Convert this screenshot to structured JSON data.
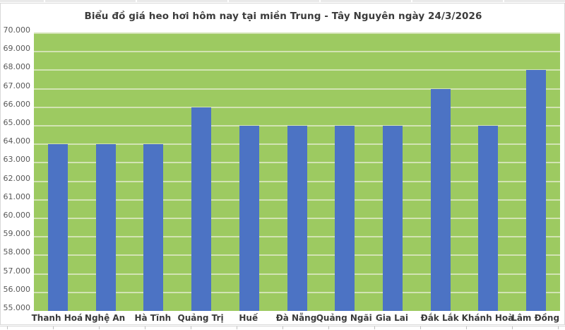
{
  "chart_data": {
    "type": "bar",
    "title": "Biểu đồ giá heo hơi hôm nay tại miền Trung - Tây Nguyên ngày 24/3/2026",
    "categories": [
      "Thanh Hoá",
      "Nghệ An",
      "Hà Tĩnh",
      "Quảng Trị",
      "Huế",
      "Đà Nẵng",
      "Quảng Ngãi",
      "Gia Lai",
      "Đắk Lắk",
      "Khánh Hoà",
      "Lâm Đồng"
    ],
    "values": [
      64000,
      64000,
      64000,
      66000,
      65000,
      65000,
      65000,
      65000,
      67000,
      65000,
      68000
    ],
    "xlabel": "",
    "ylabel": "",
    "ylim": [
      55000,
      70000
    ],
    "y_tick_step": 1000,
    "y_tick_labels": [
      "55.000",
      "56.000",
      "57.000",
      "58.000",
      "59.000",
      "60.000",
      "61.000",
      "62.000",
      "63.000",
      "64.000",
      "65.000",
      "66.000",
      "67.000",
      "68.000",
      "69.000",
      "70.000"
    ],
    "grid": "horizontal-major",
    "legend": "none",
    "colors": {
      "plot_background": "#9dca61",
      "bar_fill": "#4c73c4",
      "gridline": "#d2e3b3",
      "title_text": "#3b3b3b",
      "axis_tick_text": "#595959",
      "category_text": "#3b3b3b",
      "chart_border": "#d9d9d9",
      "sheet_strip": "#e9e9e9",
      "sheet_tick": "#c0c0c0"
    }
  }
}
